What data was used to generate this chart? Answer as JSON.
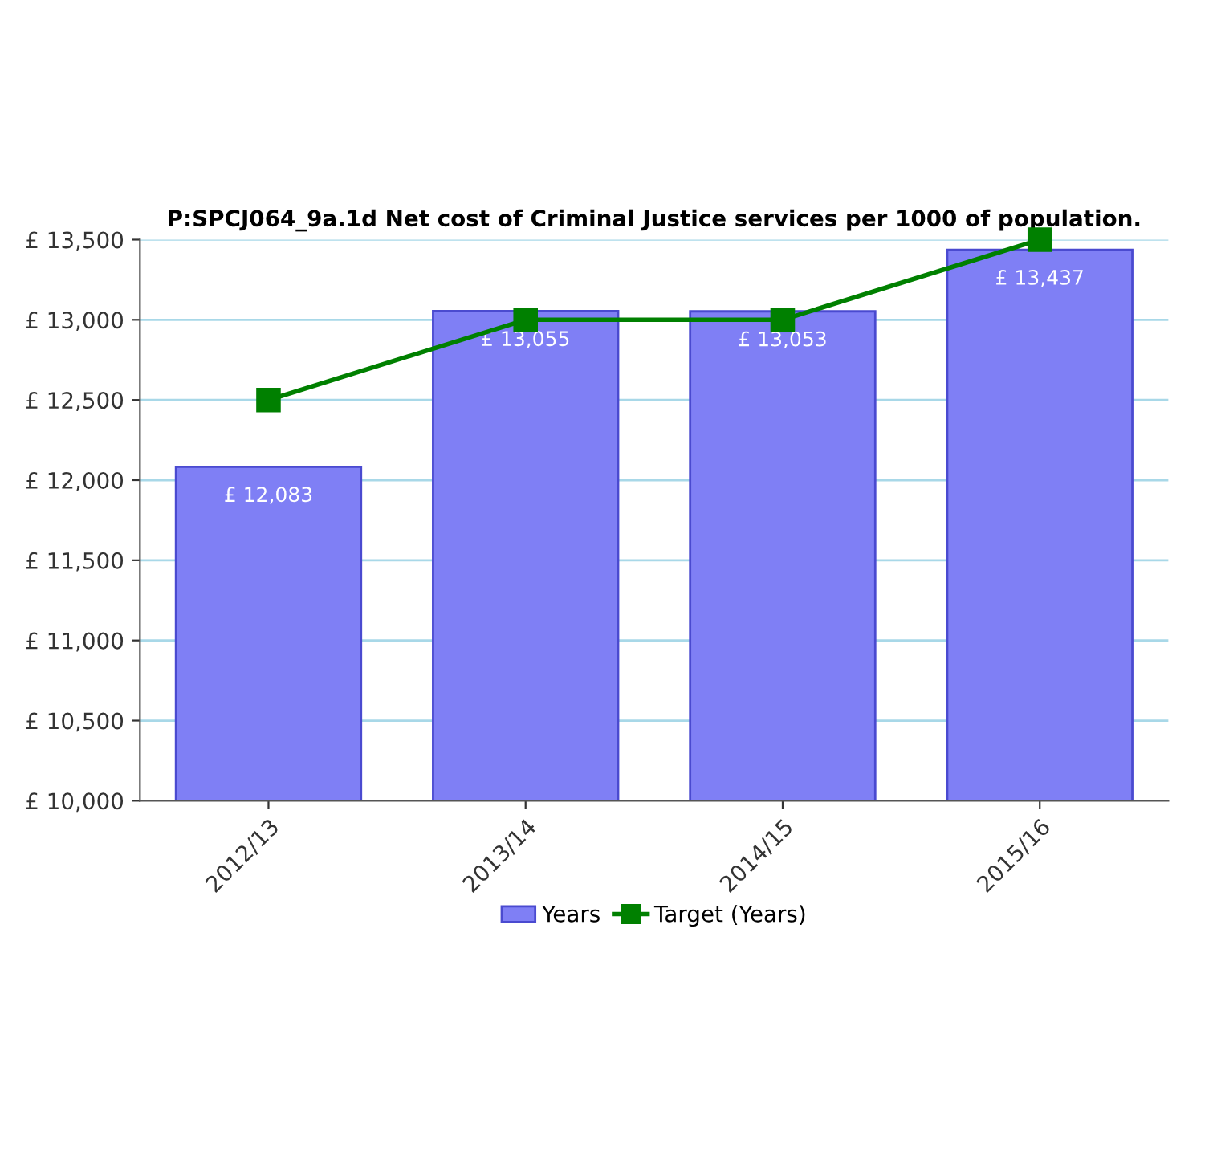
{
  "chart_data": {
    "type": "bar",
    "title": "P:SPCJ064_9a.1d Net cost of Criminal Justice services per 1000 of population.",
    "categories": [
      "2012/13",
      "2013/14",
      "2014/15",
      "2015/16"
    ],
    "series": [
      {
        "name": "Years",
        "color": "#7f7ff5",
        "values": [
          12083,
          13055,
          13053,
          13437
        ],
        "value_labels": [
          "£ 12,083",
          "£ 13,055",
          "£ 13,053",
          "£ 13,437"
        ]
      },
      {
        "name": "Target (Years)",
        "type": "line",
        "color": "#008000",
        "values": [
          12500,
          13000,
          13000,
          13500
        ],
        "marker": "square",
        "line_style": "solid"
      }
    ],
    "ylim": [
      10000,
      13500
    ],
    "yticks": [
      {
        "value": 10000,
        "label": "£ 10,000"
      },
      {
        "value": 10500,
        "label": "£ 10,500"
      },
      {
        "value": 11000,
        "label": "£ 11,000"
      },
      {
        "value": 11500,
        "label": "£ 11,500"
      },
      {
        "value": 12000,
        "label": "£ 12,000"
      },
      {
        "value": 12500,
        "label": "£ 12,500"
      },
      {
        "value": 13000,
        "label": "£ 13,000"
      },
      {
        "value": 13500,
        "label": "£ 13,500"
      }
    ],
    "grid": "y",
    "legend": "bottom"
  }
}
